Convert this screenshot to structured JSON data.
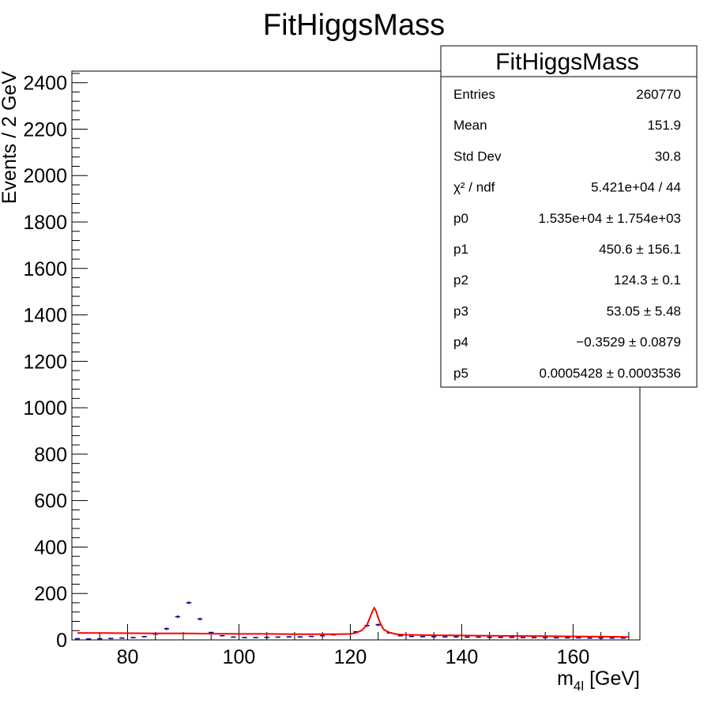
{
  "chart_data": {
    "type": "scatter",
    "title": "FitHiggsMass",
    "xlabel": {
      "main": "m",
      "sub": "4l",
      "unit": " [GeV]"
    },
    "ylabel": "Events / 2 GeV",
    "xlim": [
      70,
      172
    ],
    "ylim": [
      0,
      2450
    ],
    "xticks": [
      80,
      100,
      120,
      140,
      160
    ],
    "yticks": [
      0,
      200,
      400,
      600,
      800,
      1000,
      1200,
      1400,
      1600,
      1800,
      2000,
      2200,
      2400
    ],
    "grid": false,
    "series": [
      {
        "kind": "data-points",
        "color": "#000080",
        "x": [
          71,
          73,
          75,
          77,
          79,
          81,
          83,
          85,
          87,
          89,
          91,
          93,
          95,
          97,
          99,
          101,
          103,
          105,
          107,
          109,
          111,
          113,
          115,
          117,
          119,
          121,
          123,
          125,
          127,
          129,
          131,
          133,
          135,
          137,
          139,
          141,
          143,
          145,
          147,
          149,
          151,
          153,
          155,
          157,
          159,
          161,
          163,
          165,
          167,
          169
        ],
        "y": [
          5,
          4,
          5,
          6,
          8,
          10,
          14,
          25,
          48,
          100,
          160,
          90,
          32,
          18,
          12,
          10,
          10,
          11,
          12,
          13,
          13,
          15,
          18,
          22,
          25,
          35,
          62,
          65,
          30,
          18,
          15,
          14,
          14,
          13,
          13,
          12,
          12,
          11,
          11,
          11,
          10,
          10,
          10,
          9,
          9,
          9,
          8,
          8,
          8,
          8
        ]
      },
      {
        "kind": "fit-curve",
        "color": "#ff0000",
        "x": [
          71,
          75,
          80,
          85,
          90,
          95,
          100,
          105,
          110,
          115,
          118,
          120,
          121,
          122,
          123,
          123.5,
          124,
          124.3,
          124.6,
          125,
          125.5,
          126,
          127,
          128,
          129,
          130,
          132,
          135,
          140,
          145,
          150,
          155,
          160,
          165,
          170
        ],
        "y": [
          30,
          30,
          29,
          28,
          28,
          27,
          26,
          26,
          25,
          25,
          25,
          26,
          30,
          40,
          65,
          95,
          125,
          138,
          125,
          95,
          65,
          45,
          32,
          26,
          23,
          22,
          21,
          20,
          19,
          18,
          17,
          16,
          15,
          14,
          13
        ]
      }
    ],
    "stats_box": {
      "title": "FitHiggsMass",
      "rows": [
        {
          "label": "Entries",
          "value": "260770"
        },
        {
          "label": "Mean",
          "value": "151.9"
        },
        {
          "label": "Std Dev",
          "value": "30.8"
        },
        {
          "label": "χ² / ndf",
          "value": "5.421e+04 / 44"
        },
        {
          "label": "p0",
          "value": "1.535e+04  ± 1.754e+03"
        },
        {
          "label": "p1",
          "value": "450.6 ± 156.1"
        },
        {
          "label": "p2",
          "value": "124.3 ± 0.1"
        },
        {
          "label": "p3",
          "value": "53.05 ± 5.48"
        },
        {
          "label": "p4",
          "value": "−0.3529 ± 0.0879"
        },
        {
          "label": "p5",
          "value": "0.0005428  ± 0.0003536"
        }
      ]
    }
  }
}
